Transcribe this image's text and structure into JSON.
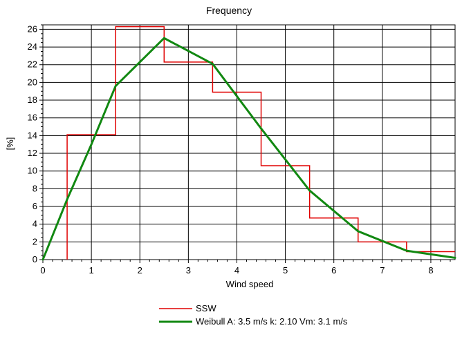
{
  "chart_data": {
    "type": "line",
    "title": "Frequency",
    "xlabel": "Wind speed",
    "ylabel": "[%]",
    "xlim": [
      0,
      8.5
    ],
    "ylim": [
      0,
      26.5
    ],
    "x_ticks": [
      0,
      1,
      2,
      3,
      4,
      5,
      6,
      7,
      8
    ],
    "y_ticks": [
      0,
      2,
      4,
      6,
      8,
      10,
      12,
      14,
      16,
      18,
      20,
      22,
      24,
      26
    ],
    "grid": true,
    "legend_position": "bottom",
    "series": [
      {
        "name": "SSW",
        "kind": "step",
        "color": "#e00000",
        "bins": [
          {
            "x0": 0.5,
            "x1": 1.5,
            "value": 14.1
          },
          {
            "x0": 1.5,
            "x1": 2.5,
            "value": 26.3
          },
          {
            "x0": 2.5,
            "x1": 3.5,
            "value": 22.3
          },
          {
            "x0": 3.5,
            "x1": 4.5,
            "value": 18.9
          },
          {
            "x0": 4.5,
            "x1": 5.5,
            "value": 10.6
          },
          {
            "x0": 5.5,
            "x1": 6.5,
            "value": 4.7
          },
          {
            "x0": 6.5,
            "x1": 7.5,
            "value": 2.0
          },
          {
            "x0": 7.5,
            "x1": 8.5,
            "value": 0.9
          }
        ]
      },
      {
        "name": "Weibull A: 3.5 m/s k: 2.10 Vm: 3.1 m/s",
        "kind": "line",
        "color": "#118811",
        "x": [
          0,
          0.5,
          1.0,
          1.5,
          2.5,
          3.5,
          4.5,
          5.5,
          6.5,
          7.5,
          8.5
        ],
        "y": [
          0,
          6.8,
          13.0,
          19.6,
          25.0,
          22.1,
          14.8,
          7.8,
          3.2,
          1.0,
          0.2
        ]
      }
    ]
  }
}
